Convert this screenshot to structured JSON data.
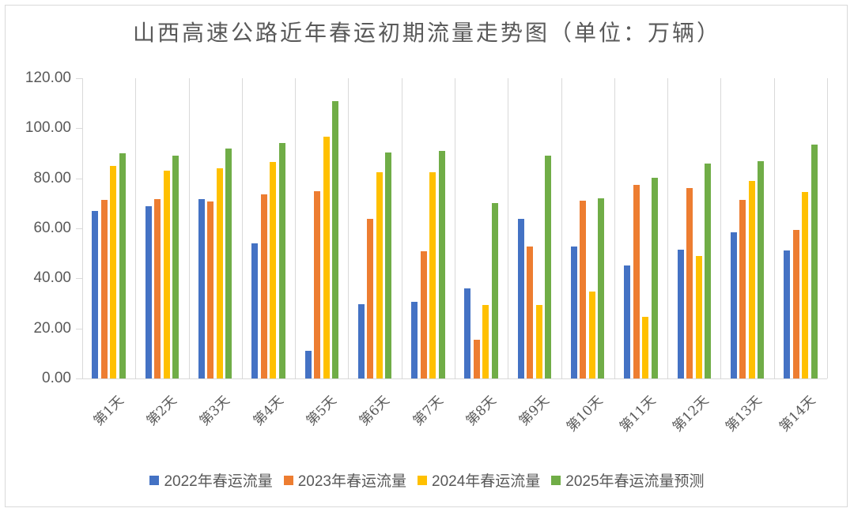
{
  "chart_data": {
    "type": "bar",
    "title": "山西高速公路近年春运初期流量走势图（单位：万辆）",
    "xlabel": "",
    "ylabel": "",
    "ylim": [
      0,
      120
    ],
    "yticks": [
      "0.00",
      "20.00",
      "40.00",
      "60.00",
      "80.00",
      "100.00",
      "120.00"
    ],
    "grid": "vertical category separators",
    "legend_position": "bottom",
    "categories": [
      "第1天",
      "第2天",
      "第3天",
      "第4天",
      "第5天",
      "第6天",
      "第7天",
      "第8天",
      "第9天",
      "第10天",
      "第11天",
      "第12天",
      "第13天",
      "第14天"
    ],
    "series": [
      {
        "name": "2022年春运流量",
        "color": "#4472c4",
        "values": [
          67.0,
          68.7,
          71.7,
          54.0,
          11.2,
          29.8,
          30.5,
          36.0,
          63.8,
          52.7,
          45.3,
          51.6,
          58.3,
          51.3
        ]
      },
      {
        "name": "2023年春运流量",
        "color": "#ed7d31",
        "values": [
          71.5,
          71.8,
          70.8,
          73.6,
          74.9,
          63.8,
          51.0,
          15.6,
          52.7,
          71.0,
          77.3,
          76.0,
          71.4,
          59.3
        ]
      },
      {
        "name": "2024年春运流量",
        "color": "#ffc000",
        "values": [
          85.0,
          83.2,
          84.0,
          86.5,
          96.5,
          82.5,
          82.5,
          29.4,
          29.4,
          34.8,
          24.6,
          49.0,
          79.0,
          74.4
        ]
      },
      {
        "name": "2025年春运流量预测",
        "color": "#70ad47",
        "values": [
          90.0,
          89.2,
          92.0,
          94.0,
          111.0,
          90.2,
          91.0,
          70.0,
          89.2,
          72.0,
          80.2,
          86.0,
          87.0,
          93.6
        ]
      }
    ]
  }
}
